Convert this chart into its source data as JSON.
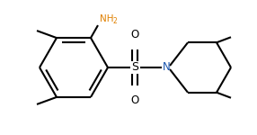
{
  "bg_color": "#ffffff",
  "line_color": "#000000",
  "N_color": "#1a56b0",
  "NH2_color": "#e08000",
  "lw": 1.5,
  "figsize": [
    2.86,
    1.5
  ],
  "dpi": 100,
  "xlim": [
    0,
    286
  ],
  "ylim": [
    0,
    150
  ]
}
